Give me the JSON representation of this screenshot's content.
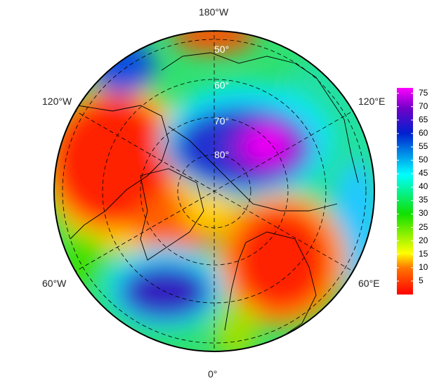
{
  "map": {
    "projection": "north polar stereographic",
    "longitude_labels": {
      "top": "180°W",
      "bottom": "0°",
      "upper_left": "120°W",
      "upper_right": "120°E",
      "lower_left": "60°W",
      "lower_right": "60°E"
    },
    "latitude_labels": [
      "50°",
      "60°",
      "70°",
      "80°"
    ],
    "grid": "dashed graticule"
  },
  "colorbar": {
    "ticks": [
      "5",
      "10",
      "15",
      "20",
      "25",
      "30",
      "35",
      "40",
      "45",
      "50",
      "55",
      "60",
      "65",
      "70",
      "75"
    ],
    "range": [
      0,
      77
    ],
    "colormap": [
      "#ff0000",
      "#ff7700",
      "#ffff00",
      "#00e000",
      "#00ffff",
      "#0030d0",
      "#8000c0",
      "#ff00ff"
    ]
  }
}
